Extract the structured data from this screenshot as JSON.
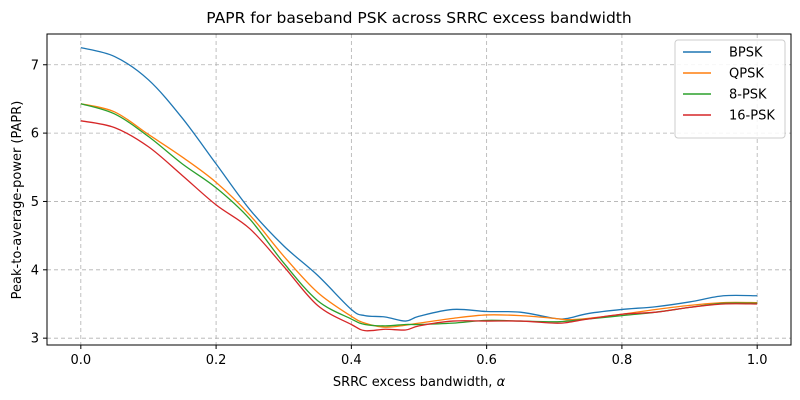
{
  "chart_data": {
    "type": "line",
    "title": "PAPR for baseband PSK across SRRC excess bandwidth",
    "xlabel": "SRRC excess bandwidth, ",
    "xlabel_symbol": "α",
    "ylabel": "Peak-to-average-power (PAPR)",
    "xlim": [
      -0.05,
      1.05
    ],
    "ylim": [
      2.9,
      7.45
    ],
    "x_ticks": [
      0.0,
      0.2,
      0.4,
      0.6,
      0.8,
      1.0
    ],
    "x_tick_labels": [
      "0.0",
      "0.2",
      "0.4",
      "0.6",
      "0.8",
      "1.0"
    ],
    "y_ticks": [
      3,
      4,
      5,
      6,
      7
    ],
    "y_tick_labels": [
      "3",
      "4",
      "5",
      "6",
      "7"
    ],
    "grid": true,
    "legend_position": "top-right",
    "x": [
      0.0,
      0.05,
      0.1,
      0.15,
      0.2,
      0.25,
      0.3,
      0.35,
      0.4,
      0.42,
      0.45,
      0.48,
      0.5,
      0.55,
      0.6,
      0.65,
      0.7,
      0.72,
      0.75,
      0.8,
      0.85,
      0.9,
      0.95,
      1.0
    ],
    "series": [
      {
        "name": "BPSK",
        "color": "#1f77b4",
        "values": [
          7.25,
          7.12,
          6.78,
          6.22,
          5.55,
          4.88,
          4.35,
          3.92,
          3.42,
          3.33,
          3.31,
          3.25,
          3.32,
          3.42,
          3.39,
          3.38,
          3.29,
          3.29,
          3.36,
          3.42,
          3.46,
          3.53,
          3.62,
          3.62
        ]
      },
      {
        "name": "QPSK",
        "color": "#ff7f0e",
        "values": [
          6.43,
          6.31,
          5.98,
          5.65,
          5.28,
          4.8,
          4.2,
          3.67,
          3.32,
          3.22,
          3.16,
          3.19,
          3.22,
          3.29,
          3.34,
          3.33,
          3.29,
          3.27,
          3.29,
          3.35,
          3.42,
          3.48,
          3.52,
          3.52
        ]
      },
      {
        "name": "8-PSK",
        "color": "#2ca02c",
        "values": [
          6.43,
          6.28,
          5.95,
          5.55,
          5.2,
          4.74,
          4.1,
          3.55,
          3.28,
          3.2,
          3.18,
          3.2,
          3.2,
          3.22,
          3.26,
          3.25,
          3.24,
          3.25,
          3.28,
          3.33,
          3.38,
          3.45,
          3.51,
          3.51
        ]
      },
      {
        "name": "16-PSK",
        "color": "#d62728",
        "values": [
          6.18,
          6.08,
          5.8,
          5.38,
          4.95,
          4.6,
          4.05,
          3.48,
          3.2,
          3.11,
          3.13,
          3.12,
          3.18,
          3.25,
          3.25,
          3.25,
          3.22,
          3.23,
          3.28,
          3.35,
          3.38,
          3.45,
          3.5,
          3.5
        ]
      }
    ]
  }
}
